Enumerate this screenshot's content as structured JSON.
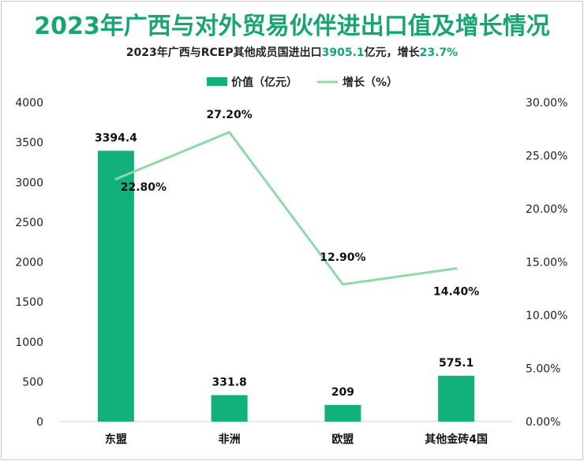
{
  "chart_data": {
    "type": "bar",
    "title": "2023年广西与对外贸易伙伴进出口值及增长情况",
    "subtitle": {
      "prefix": "2023年广西与RCEP其他成员国进出口",
      "value": "3905.1",
      "middle": "亿元，增长",
      "growth": "23.7%"
    },
    "categories": [
      "东盟",
      "非洲",
      "欧盟",
      "其他金砖4国"
    ],
    "series": [
      {
        "name": "价值（亿元）",
        "type": "bar",
        "axis": "left",
        "values": [
          3394.4,
          331.8,
          209,
          575.1
        ],
        "labels": [
          "3394.4",
          "331.8",
          "209",
          "575.1"
        ],
        "color": "#12b07a"
      },
      {
        "name": "增长（%）",
        "type": "line",
        "axis": "right",
        "values": [
          22.8,
          27.2,
          12.9,
          14.4
        ],
        "labels": [
          "22.80%",
          "27.20%",
          "12.90%",
          "14.40%"
        ],
        "color": "#8fd9a8"
      }
    ],
    "y_left": {
      "min": 0,
      "max": 4000,
      "ticks": [
        "0",
        "500",
        "1000",
        "1500",
        "2000",
        "2500",
        "3000",
        "3500",
        "4000"
      ]
    },
    "y_right": {
      "min": 0,
      "max": 30,
      "ticks": [
        "0.00%",
        "5.00%",
        "10.00%",
        "15.00%",
        "20.00%",
        "25.00%",
        "30.00%"
      ]
    },
    "legend_position": "top-center",
    "grid": false
  }
}
